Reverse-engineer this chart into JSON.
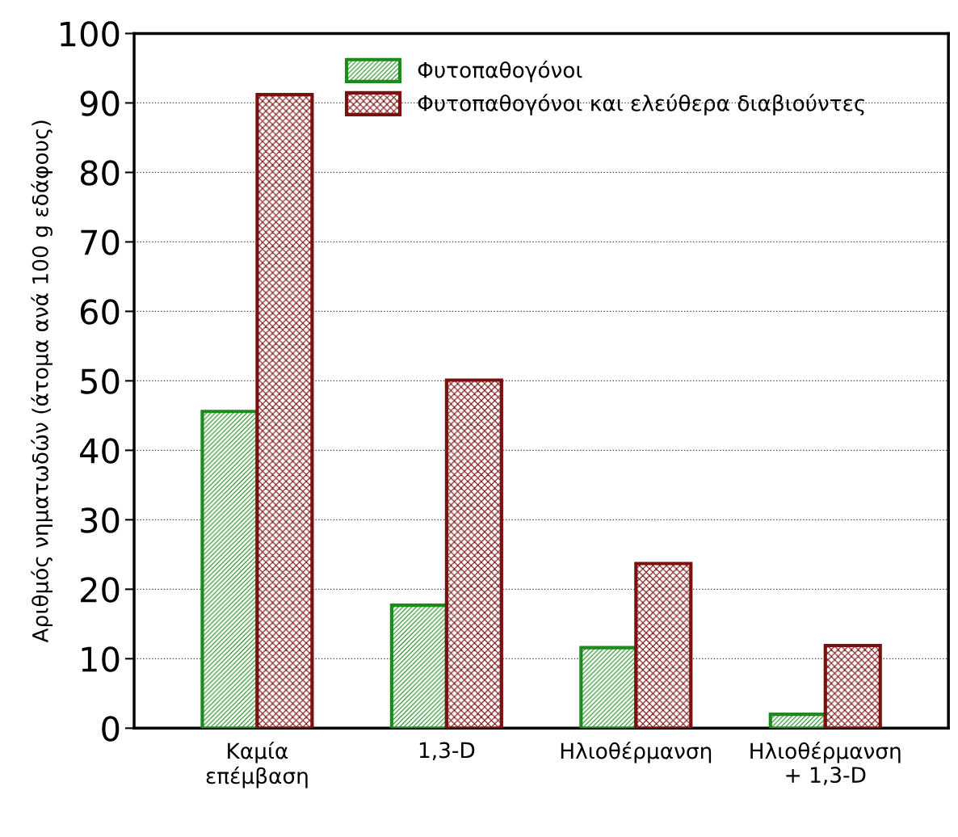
{
  "chart_data": {
    "type": "bar",
    "ylabel": "Αριθμός νηματωδών (άτομα ανά 100 g εδάφους)",
    "categories": [
      "Καμία\nεπέμβαση",
      "1,3-D",
      "Ηλιοθέρμανση",
      "Ηλιοθέρμανση\n+ 1,3-D"
    ],
    "series": [
      {
        "name": "Φυτοπαθογόνοι",
        "color": "#1e8a1e",
        "values": [
          45.6,
          17.7,
          11.6,
          2.0
        ]
      },
      {
        "name": "Φυτοπαθογόνοι και ελεύθερα διαβιούντες",
        "color": "#7a1010",
        "values": [
          91.2,
          50.1,
          23.7,
          11.9
        ]
      }
    ],
    "ylim": [
      0,
      100
    ],
    "yticks": [
      0,
      10,
      20,
      30,
      40,
      50,
      60,
      70,
      80,
      90,
      100
    ],
    "grid": "y",
    "legend": "top"
  }
}
